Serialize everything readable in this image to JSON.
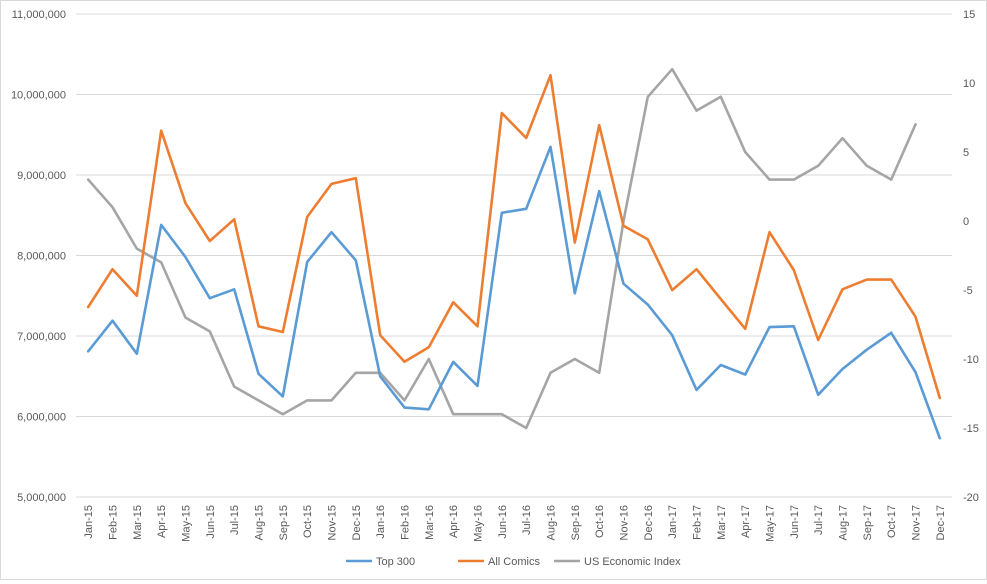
{
  "chart_data": {
    "type": "line",
    "title": "",
    "categories": [
      "Jan-15",
      "Feb-15",
      "Mar-15",
      "Apr-15",
      "May-15",
      "Jun-15",
      "Jul-15",
      "Aug-15",
      "Sep-15",
      "Oct-15",
      "Nov-15",
      "Dec-15",
      "Jan-16",
      "Feb-16",
      "Mar-16",
      "Apr-16",
      "May-16",
      "Jun-16",
      "Jul-16",
      "Aug-16",
      "Sep-16",
      "Oct-16",
      "Nov-16",
      "Dec-16",
      "Jan-17",
      "Feb-17",
      "Mar-17",
      "Apr-17",
      "May-17",
      "Jun-17",
      "Jul-17",
      "Aug-17",
      "Sep-17",
      "Oct-17",
      "Nov-17",
      "Dec-17"
    ],
    "left_axis": {
      "min": 5000000,
      "max": 11000000,
      "step": 1000000,
      "tick_labels": [
        "5,000,000",
        "6,000,000",
        "7,000,000",
        "8,000,000",
        "9,000,000",
        "10,000,000",
        "11,000,000"
      ]
    },
    "right_axis": {
      "min": -20,
      "max": 15,
      "step": 5,
      "tick_labels": [
        "-20",
        "-15",
        "-10",
        "-5",
        "0",
        "5",
        "10",
        "15"
      ]
    },
    "grid": true,
    "legend_position": "bottom",
    "series": [
      {
        "name": "Top 300",
        "axis": "left",
        "color": "#5b9bd5",
        "values": [
          6810000,
          7190000,
          6780000,
          8380000,
          7980000,
          7470000,
          7580000,
          6530000,
          6250000,
          7920000,
          8290000,
          7940000,
          6500000,
          6110000,
          6090000,
          6680000,
          6380000,
          8530000,
          8580000,
          9350000,
          7530000,
          8800000,
          7650000,
          7390000,
          7010000,
          6330000,
          6640000,
          6520000,
          7110000,
          7120000,
          6270000,
          6590000,
          6830000,
          7040000,
          6550000,
          5730000
        ]
      },
      {
        "name": "All Comics",
        "axis": "left",
        "color": "#ed7d31",
        "values": [
          7360000,
          7830000,
          7500000,
          9550000,
          8650000,
          8180000,
          8450000,
          7120000,
          7050000,
          8480000,
          8890000,
          8960000,
          7010000,
          6680000,
          6860000,
          7420000,
          7120000,
          9770000,
          9460000,
          10240000,
          8160000,
          9620000,
          8370000,
          8200000,
          7570000,
          7830000,
          7460000,
          7090000,
          8290000,
          7820000,
          6950000,
          7580000,
          7700000,
          7700000,
          7240000,
          6230000
        ]
      },
      {
        "name": "US Economic Index",
        "axis": "right",
        "color": "#a5a5a5",
        "values": [
          3,
          1,
          -2,
          -3,
          -7,
          -8,
          -12,
          -13,
          -14,
          -13,
          -13,
          -11,
          -11,
          -13,
          -10,
          -14,
          -14,
          -14,
          -15,
          -11,
          -10,
          -11,
          0,
          9,
          11,
          8,
          9,
          5,
          3,
          3,
          4,
          6,
          4,
          3,
          7,
          null
        ]
      }
    ]
  }
}
